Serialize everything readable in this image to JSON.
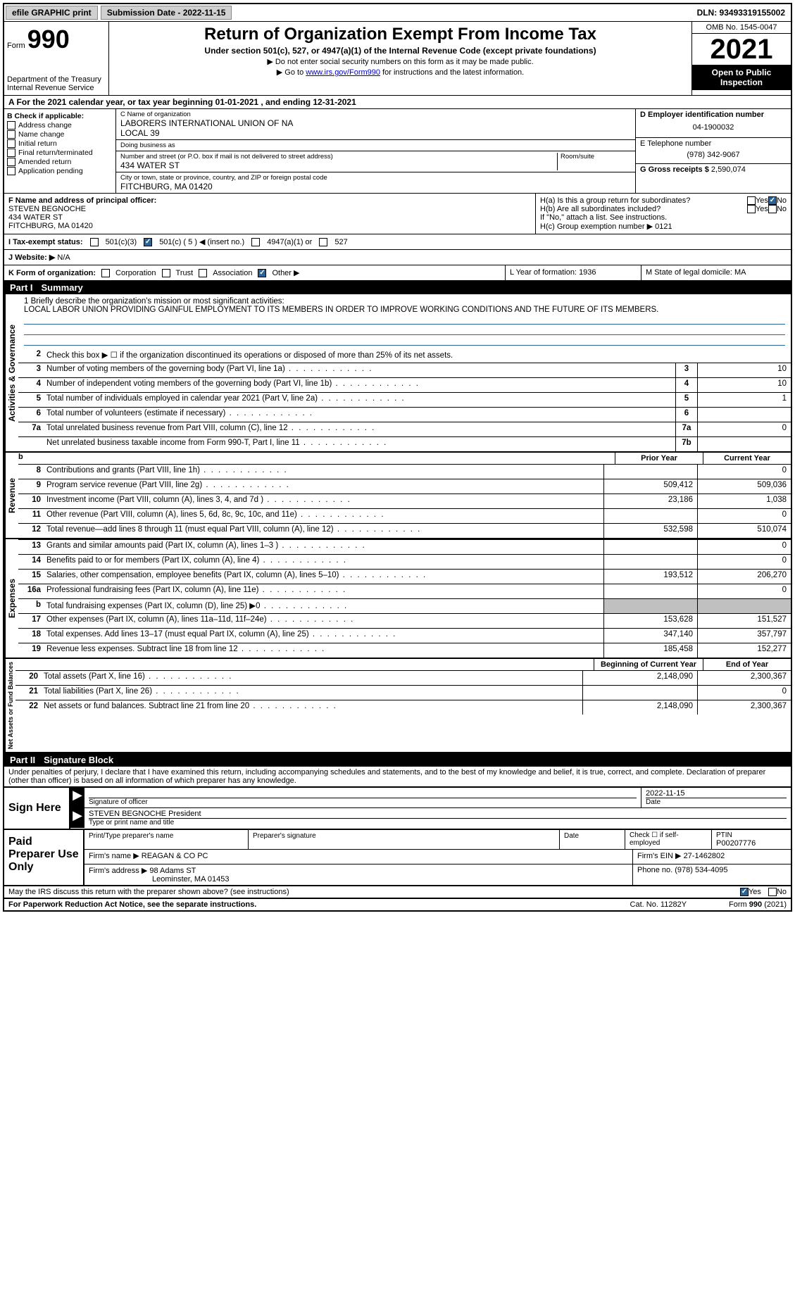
{
  "topbar": {
    "efile": "efile GRAPHIC print",
    "submission_label": "Submission Date - 2022-11-15",
    "dln": "DLN: 93493319155002"
  },
  "header": {
    "form_label": "Form",
    "form_number": "990",
    "dept": "Department of the Treasury",
    "irs": "Internal Revenue Service",
    "title": "Return of Organization Exempt From Income Tax",
    "subtitle": "Under section 501(c), 527, or 4947(a)(1) of the Internal Revenue Code (except private foundations)",
    "note1": "▶ Do not enter social security numbers on this form as it may be made public.",
    "note2_pre": "▶ Go to ",
    "note2_link": "www.irs.gov/Form990",
    "note2_post": " for instructions and the latest information.",
    "omb": "OMB No. 1545-0047",
    "year": "2021",
    "open": "Open to Public Inspection"
  },
  "line_a": "A For the 2021 calendar year, or tax year beginning 01-01-2021   , and ending 12-31-2021",
  "check_b": {
    "label": "B Check if applicable:",
    "items": [
      "Address change",
      "Name change",
      "Initial return",
      "Final return/terminated",
      "Amended return",
      "Application pending"
    ]
  },
  "block_c": {
    "name_label": "C Name of organization",
    "name1": "LABORERS INTERNATIONAL UNION OF NA",
    "name2": "LOCAL 39",
    "dba_label": "Doing business as",
    "addr_label": "Number and street (or P.O. box if mail is not delivered to street address)",
    "room_label": "Room/suite",
    "addr": "434 WATER ST",
    "city_label": "City or town, state or province, country, and ZIP or foreign postal code",
    "city": "FITCHBURG, MA  01420"
  },
  "block_d": {
    "label": "D Employer identification number",
    "value": "04-1900032"
  },
  "block_e": {
    "label": "E Telephone number",
    "value": "(978) 342-9067"
  },
  "block_g": {
    "label": "G Gross receipts $",
    "value": "2,590,074"
  },
  "block_f": {
    "label": "F Name and address of principal officer:",
    "name": "STEVEN BEGNOCHE",
    "addr": "434 WATER ST",
    "city": "FITCHBURG, MA  01420"
  },
  "block_h": {
    "ha": "H(a)  Is this a group return for subordinates?",
    "hb": "H(b)  Are all subordinates included?",
    "hb_note": "If \"No,\" attach a list. See instructions.",
    "hc": "H(c)  Group exemption number ▶",
    "hc_val": "0121",
    "yes": "Yes",
    "no": "No"
  },
  "exempt": {
    "label": "I   Tax-exempt status:",
    "c3": "501(c)(3)",
    "c": "501(c) ( 5 ) ◀ (insert no.)",
    "a1": "4947(a)(1) or",
    "527": "527"
  },
  "website": {
    "label": "J  Website: ▶",
    "value": "N/A"
  },
  "line_k": "K Form of organization:",
  "k_opts": [
    "Corporation",
    "Trust",
    "Association",
    "Other ▶"
  ],
  "line_l": {
    "label": "L Year of formation:",
    "value": "1936"
  },
  "line_m": {
    "label": "M State of legal domicile:",
    "value": "MA"
  },
  "parts": {
    "p1": "Part I",
    "p1_title": "Summary",
    "p2": "Part II",
    "p2_title": "Signature Block"
  },
  "mission": {
    "label": "1   Briefly describe the organization's mission or most significant activities:",
    "text": "LOCAL LABOR UNION PROVIDING GAINFUL EMPLOYMENT TO ITS MEMBERS IN ORDER TO IMPROVE WORKING CONDITIONS AND THE FUTURE OF ITS MEMBERS."
  },
  "line2": "Check this box ▶ ☐  if the organization discontinued its operations or disposed of more than 25% of its net assets.",
  "lines_single": [
    {
      "n": "3",
      "t": "Number of voting members of the governing body (Part VI, line 1a)",
      "b": "3",
      "v": "10"
    },
    {
      "n": "4",
      "t": "Number of independent voting members of the governing body (Part VI, line 1b)",
      "b": "4",
      "v": "10"
    },
    {
      "n": "5",
      "t": "Total number of individuals employed in calendar year 2021 (Part V, line 2a)",
      "b": "5",
      "v": "1"
    },
    {
      "n": "6",
      "t": "Total number of volunteers (estimate if necessary)",
      "b": "6",
      "v": ""
    },
    {
      "n": "7a",
      "t": "Total unrelated business revenue from Part VIII, column (C), line 12",
      "b": "7a",
      "v": "0"
    },
    {
      "n": "",
      "t": "Net unrelated business taxable income from Form 990-T, Part I, line 11",
      "b": "7b",
      "v": ""
    }
  ],
  "col_headers": {
    "prior": "Prior Year",
    "current": "Current Year"
  },
  "revenue_lines": [
    {
      "n": "8",
      "t": "Contributions and grants (Part VIII, line 1h)",
      "p": "",
      "c": "0"
    },
    {
      "n": "9",
      "t": "Program service revenue (Part VIII, line 2g)",
      "p": "509,412",
      "c": "509,036"
    },
    {
      "n": "10",
      "t": "Investment income (Part VIII, column (A), lines 3, 4, and 7d )",
      "p": "23,186",
      "c": "1,038"
    },
    {
      "n": "11",
      "t": "Other revenue (Part VIII, column (A), lines 5, 6d, 8c, 9c, 10c, and 11e)",
      "p": "",
      "c": "0"
    },
    {
      "n": "12",
      "t": "Total revenue—add lines 8 through 11 (must equal Part VIII, column (A), line 12)",
      "p": "532,598",
      "c": "510,074"
    }
  ],
  "expense_lines": [
    {
      "n": "13",
      "t": "Grants and similar amounts paid (Part IX, column (A), lines 1–3 )",
      "p": "",
      "c": "0"
    },
    {
      "n": "14",
      "t": "Benefits paid to or for members (Part IX, column (A), line 4)",
      "p": "",
      "c": "0"
    },
    {
      "n": "15",
      "t": "Salaries, other compensation, employee benefits (Part IX, column (A), lines 5–10)",
      "p": "193,512",
      "c": "206,270"
    },
    {
      "n": "16a",
      "t": "Professional fundraising fees (Part IX, column (A), line 11e)",
      "p": "",
      "c": "0"
    },
    {
      "n": "b",
      "t": "Total fundraising expenses (Part IX, column (D), line 25) ▶0",
      "p": "shade",
      "c": "shade"
    },
    {
      "n": "17",
      "t": "Other expenses (Part IX, column (A), lines 11a–11d, 11f–24e)",
      "p": "153,628",
      "c": "151,527"
    },
    {
      "n": "18",
      "t": "Total expenses. Add lines 13–17 (must equal Part IX, column (A), line 25)",
      "p": "347,140",
      "c": "357,797"
    },
    {
      "n": "19",
      "t": "Revenue less expenses. Subtract line 18 from line 12",
      "p": "185,458",
      "c": "152,277"
    }
  ],
  "net_headers": {
    "b": "Beginning of Current Year",
    "e": "End of Year"
  },
  "net_lines": [
    {
      "n": "20",
      "t": "Total assets (Part X, line 16)",
      "p": "2,148,090",
      "c": "2,300,367"
    },
    {
      "n": "21",
      "t": "Total liabilities (Part X, line 26)",
      "p": "",
      "c": "0"
    },
    {
      "n": "22",
      "t": "Net assets or fund balances. Subtract line 21 from line 20",
      "p": "2,148,090",
      "c": "2,300,367"
    }
  ],
  "vlabels": {
    "gov": "Activities & Governance",
    "rev": "Revenue",
    "exp": "Expenses",
    "net": "Net Assets or Fund Balances"
  },
  "penalties": "Under penalties of perjury, I declare that I have examined this return, including accompanying schedules and statements, and to the best of my knowledge and belief, it is true, correct, and complete. Declaration of preparer (other than officer) is based on all information of which preparer has any knowledge.",
  "sign": {
    "here": "Sign Here",
    "sig_label": "Signature of officer",
    "date_label": "Date",
    "date": "2022-11-15",
    "name": "STEVEN BEGNOCHE President",
    "name_label": "Type or print name and title"
  },
  "preparer": {
    "title": "Paid Preparer Use Only",
    "pt_name_label": "Print/Type preparer's name",
    "sig_label": "Preparer's signature",
    "date_label": "Date",
    "check_label": "Check ☐ if self-employed",
    "ptin_label": "PTIN",
    "ptin": "P00207776",
    "firm_name_label": "Firm's name    ▶",
    "firm_name": "REAGAN & CO PC",
    "firm_ein_label": "Firm's EIN ▶",
    "firm_ein": "27-1462802",
    "firm_addr_label": "Firm's address ▶",
    "firm_addr": "98 Adams ST",
    "firm_city": "Leominster, MA  01453",
    "phone_label": "Phone no.",
    "phone": "(978) 534-4095"
  },
  "discuss": "May the IRS discuss this return with the preparer shown above? (see instructions)",
  "footer": {
    "paperwork": "For Paperwork Reduction Act Notice, see the separate instructions.",
    "cat": "Cat. No. 11282Y",
    "form": "Form 990 (2021)"
  },
  "yes": "Yes",
  "no": "No"
}
